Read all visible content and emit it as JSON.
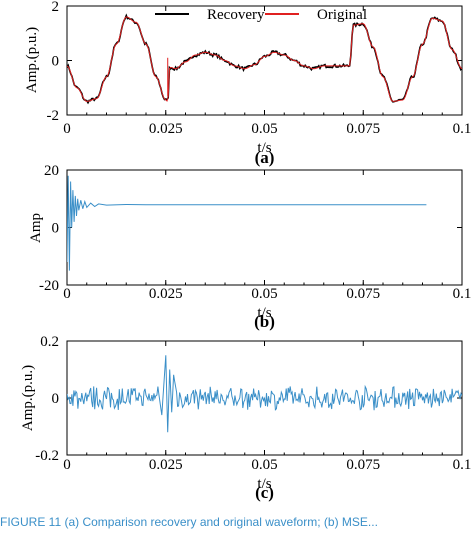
{
  "chart_data": [
    {
      "id": "a",
      "type": "line",
      "panel_label": "(a)",
      "xlabel": "t/s",
      "ylabel": "Amp.(p.u.)",
      "xlim": [
        0,
        0.1
      ],
      "ylim": [
        -2,
        2
      ],
      "xticks": [
        "0",
        "0.025",
        "0.05",
        "0.075",
        "0.1"
      ],
      "yticks": [
        "2",
        "0",
        "-2"
      ],
      "legend_position": "top-center",
      "series": [
        {
          "name": "Recovery",
          "color": "#000000",
          "x": [
            0,
            0.0025,
            0.005,
            0.0075,
            0.01,
            0.0125,
            0.015,
            0.0175,
            0.02,
            0.0225,
            0.025,
            0.0255,
            0.026,
            0.0275,
            0.03,
            0.0325,
            0.035,
            0.0375,
            0.04,
            0.0425,
            0.045,
            0.0475,
            0.05,
            0.0525,
            0.055,
            0.0575,
            0.06,
            0.0625,
            0.065,
            0.0675,
            0.07,
            0.0715,
            0.0725,
            0.075,
            0.0775,
            0.08,
            0.0825,
            0.085,
            0.0875,
            0.09,
            0.0925,
            0.095,
            0.0975,
            0.1
          ],
          "y": [
            -0.2,
            -1.0,
            -1.5,
            -1.4,
            -0.6,
            0.6,
            1.6,
            1.4,
            0.6,
            -0.6,
            -1.45,
            -1.5,
            -0.25,
            -0.3,
            -0.05,
            0.2,
            0.3,
            0.2,
            0.0,
            -0.2,
            -0.3,
            -0.15,
            0.15,
            0.3,
            0.2,
            0.0,
            -0.2,
            -0.3,
            -0.2,
            -0.2,
            -0.2,
            -0.2,
            1.3,
            1.35,
            0.5,
            -0.6,
            -1.5,
            -1.45,
            -0.6,
            0.6,
            1.55,
            1.45,
            0.4,
            -0.3
          ]
        },
        {
          "name": "Original",
          "color": "#e02020",
          "x": [
            0,
            0.0025,
            0.005,
            0.0075,
            0.01,
            0.0125,
            0.015,
            0.0175,
            0.02,
            0.0225,
            0.025,
            0.0255,
            0.026,
            0.0275,
            0.03,
            0.0325,
            0.035,
            0.0375,
            0.04,
            0.0425,
            0.045,
            0.0475,
            0.05,
            0.0525,
            0.055,
            0.0575,
            0.06,
            0.0625,
            0.065,
            0.0675,
            0.07,
            0.0715,
            0.0725,
            0.075,
            0.0775,
            0.08,
            0.0825,
            0.085,
            0.0875,
            0.09,
            0.0925,
            0.095,
            0.0975,
            0.1
          ],
          "y": [
            -0.2,
            -1.0,
            -1.5,
            -1.4,
            -0.6,
            0.6,
            1.6,
            1.4,
            0.6,
            -0.6,
            -1.45,
            -1.5,
            -0.25,
            -0.3,
            -0.05,
            0.2,
            0.3,
            0.2,
            0.0,
            -0.2,
            -0.3,
            -0.15,
            0.15,
            0.3,
            0.2,
            0.0,
            -0.2,
            -0.3,
            -0.2,
            -0.2,
            -0.2,
            -0.2,
            1.3,
            1.35,
            0.5,
            -0.6,
            -1.5,
            -1.45,
            -0.6,
            0.6,
            1.55,
            1.45,
            0.4,
            -0.3
          ]
        }
      ]
    },
    {
      "id": "b",
      "type": "line",
      "panel_label": "(b)",
      "xlabel": "t/s",
      "ylabel": "Amp",
      "xlim": [
        0,
        0.1
      ],
      "ylim": [
        -20,
        20
      ],
      "xticks": [
        "0",
        "0.025",
        "0.05",
        "0.075",
        "0.1"
      ],
      "yticks": [
        "20",
        "0",
        "-20"
      ],
      "series": [
        {
          "color": "#3a8fc8",
          "x": [
            0,
            0.0003,
            0.0006,
            0.0009,
            0.0012,
            0.0015,
            0.0018,
            0.0021,
            0.0024,
            0.0027,
            0.003,
            0.0035,
            0.004,
            0.0045,
            0.005,
            0.006,
            0.007,
            0.008,
            0.01,
            0.015,
            0.02,
            0.03,
            0.05,
            0.07,
            0.091
          ],
          "y": [
            -12,
            18,
            -15,
            16,
            0,
            13,
            2,
            11,
            4,
            10,
            6,
            9.5,
            6.5,
            9,
            7,
            8.5,
            7.3,
            8.2,
            7.8,
            8.0,
            7.9,
            7.9,
            7.9,
            7.9,
            7.9
          ]
        }
      ]
    },
    {
      "id": "c",
      "type": "line",
      "panel_label": "(c)",
      "xlabel": "t/s",
      "ylabel": "Amp.(p.u.)",
      "xlim": [
        0,
        0.1
      ],
      "ylim": [
        -0.2,
        0.2
      ],
      "xticks": [
        "0",
        "0.025",
        "0.05",
        "0.075",
        "0.1"
      ],
      "yticks": [
        "0.2",
        "0",
        "-0.2"
      ],
      "series": [
        {
          "color": "#3a8fc8",
          "x": [
            0,
            0.005,
            0.01,
            0.015,
            0.02,
            0.023,
            0.024,
            0.025,
            0.0255,
            0.026,
            0.0265,
            0.027,
            0.028,
            0.03,
            0.035,
            0.04,
            0.05,
            0.06,
            0.07,
            0.08,
            0.09,
            0.1
          ],
          "y": [
            0.0,
            0.02,
            -0.02,
            0.02,
            -0.02,
            0.04,
            -0.06,
            0.15,
            -0.12,
            0.1,
            -0.05,
            0.08,
            0.0,
            0.03,
            -0.03,
            0.02,
            -0.02,
            0.02,
            -0.02,
            0.03,
            -0.02,
            0.0
          ],
          "noise_amplitude": 0.03
        }
      ]
    }
  ],
  "caption": "FIGURE 11  (a) Comparison recovery and original waveform; (b) MSE..."
}
